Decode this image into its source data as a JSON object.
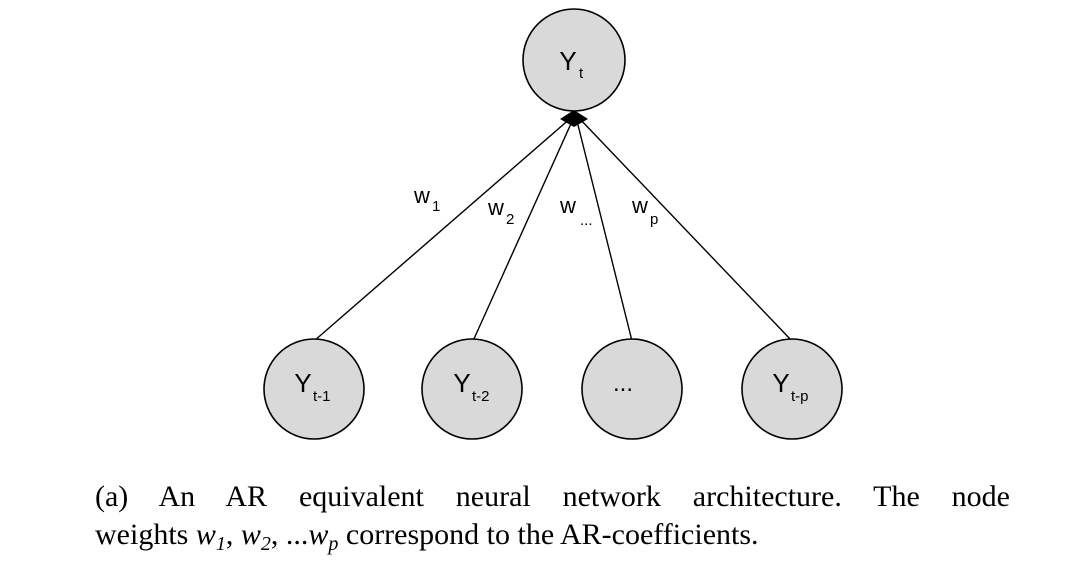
{
  "diagram": {
    "output_node": {
      "main": "Y",
      "sub": "t"
    },
    "input_nodes": [
      {
        "main": "Y",
        "sub": "t-1"
      },
      {
        "main": "Y",
        "sub": "t-2"
      },
      {
        "main": "...",
        "sub": ""
      },
      {
        "main": "Y",
        "sub": "t-p"
      }
    ],
    "weights": [
      {
        "main": "w",
        "sub": "1"
      },
      {
        "main": "w",
        "sub": "2"
      },
      {
        "main": "w",
        "sub": "..."
      },
      {
        "main": "w",
        "sub": "p"
      }
    ]
  },
  "caption": {
    "line1": "(a) An AR equivalent neural network architecture.  The node",
    "line2_prefix": "weights ",
    "w1": "w",
    "w1_sub": "1",
    "sep1": ", ",
    "w2": "w",
    "w2_sub": "2",
    "sep2": ", ...",
    "wp": "w",
    "wp_sub": "p",
    "line2_suffix": " correspond to the AR-coefficients."
  }
}
